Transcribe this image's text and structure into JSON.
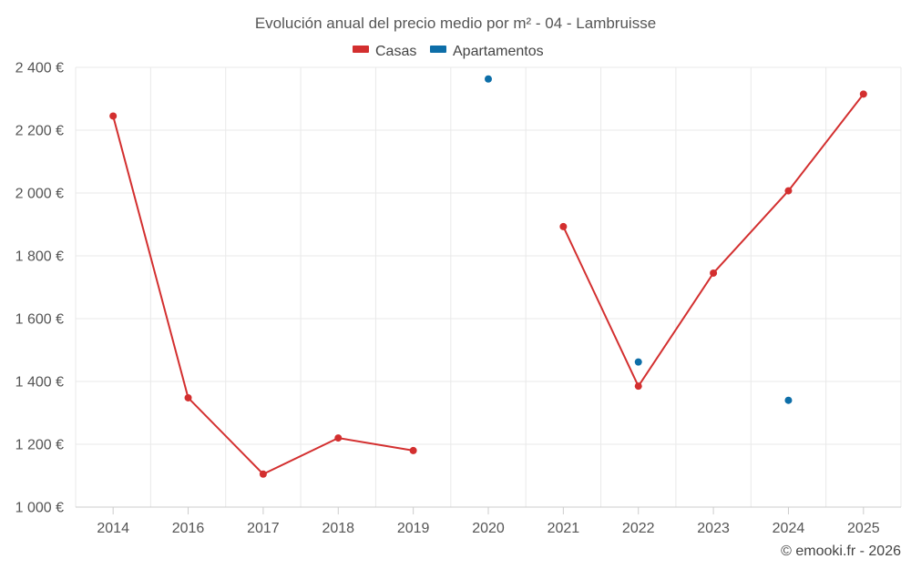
{
  "chart_data": {
    "type": "line",
    "title": "Evolución anual del precio medio por m² - 04 - Lambruisse",
    "categories": [
      "2014",
      "2016",
      "2017",
      "2018",
      "2019",
      "2020",
      "2021",
      "2022",
      "2023",
      "2024",
      "2025"
    ],
    "series": [
      {
        "name": "Casas",
        "color": "#d32f2f",
        "values": [
          2245,
          1348,
          1105,
          1220,
          1180,
          null,
          1893,
          1385,
          1745,
          2007,
          2315
        ]
      },
      {
        "name": "Apartamentos",
        "color": "#0d6ea8",
        "values": [
          null,
          null,
          null,
          null,
          null,
          2363,
          null,
          1462,
          null,
          1340,
          null
        ]
      }
    ],
    "yticks": [
      1000,
      1200,
      1400,
      1600,
      1800,
      2000,
      2200,
      2400
    ],
    "ytick_labels": [
      "1 000 €",
      "1 200 €",
      "1 400 €",
      "1 600 €",
      "1 800 €",
      "2 000 €",
      "2 200 €",
      "2 400 €"
    ],
    "ylim": [
      1000,
      2400
    ],
    "xlabel": "",
    "ylabel": "",
    "grid": true,
    "legend_position": "top-center"
  },
  "credit": "© emooki.fr - 2026"
}
